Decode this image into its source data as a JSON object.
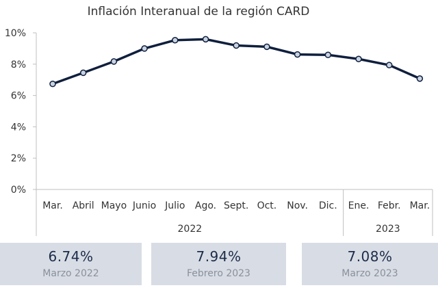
{
  "chart_data": {
    "type": "line",
    "title": "Inflación Interanual de la región CARD",
    "categories": [
      "Mar.",
      "Abril",
      "Mayo",
      "Junio",
      "Julio",
      "Ago.",
      "Sept.",
      "Oct.",
      "Nov.",
      "Dic.",
      "Ene.",
      "Febr.",
      "Mar."
    ],
    "series": [
      {
        "values": [
          6.74,
          7.45,
          8.17,
          9.0,
          9.53,
          9.59,
          9.19,
          9.11,
          8.62,
          8.59,
          8.33,
          7.94,
          7.08
        ]
      }
    ],
    "year_groups": [
      {
        "label": "2022",
        "start": 0,
        "end": 9
      },
      {
        "label": "2023",
        "start": 10,
        "end": 12
      }
    ],
    "ylim": [
      0,
      10
    ],
    "y_ticks": [
      0,
      2,
      4,
      6,
      8,
      10
    ],
    "y_tick_labels": [
      "0%",
      "2%",
      "4%",
      "6%",
      "8%",
      "10%"
    ],
    "grid": false,
    "line_color": "#0f1f3d",
    "marker_fill": "#c9d3e2"
  },
  "stats": [
    {
      "value": "6.74%",
      "label": "Marzo 2022"
    },
    {
      "value": "7.94%",
      "label": "Febrero 2023"
    },
    {
      "value": "7.08%",
      "label": "Marzo 2023"
    }
  ]
}
